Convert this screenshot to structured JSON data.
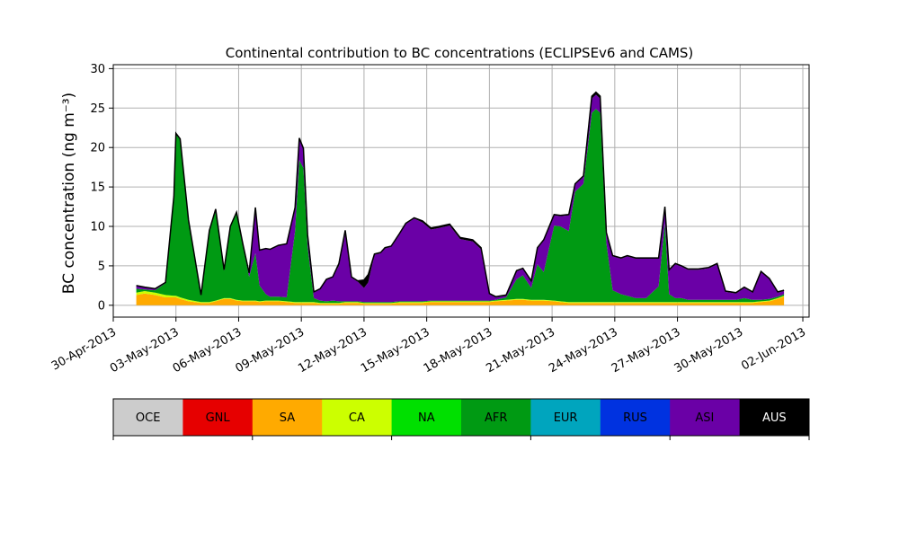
{
  "chart_data": {
    "type": "area",
    "title": "Continental contribution to BC concentrations (ECLIPSEv6 and CAMS)",
    "xlabel": "",
    "ylabel": "BC concentration (ng m⁻³)",
    "x_unit": "day",
    "xlim": [
      30,
      63.3
    ],
    "ylim": [
      -1.5,
      30.5
    ],
    "yticks": [
      0,
      5,
      10,
      15,
      20,
      25,
      30
    ],
    "xticks": [
      {
        "day": 30,
        "label": "30-Apr-2013"
      },
      {
        "day": 33,
        "label": "03-May-2013"
      },
      {
        "day": 36,
        "label": "06-May-2013"
      },
      {
        "day": 39,
        "label": "09-May-2013"
      },
      {
        "day": 42,
        "label": "12-May-2013"
      },
      {
        "day": 45,
        "label": "15-May-2013"
      },
      {
        "day": 48,
        "label": "18-May-2013"
      },
      {
        "day": 51,
        "label": "21-May-2013"
      },
      {
        "day": 54,
        "label": "24-May-2013"
      },
      {
        "day": 57,
        "label": "27-May-2013"
      },
      {
        "day": 60,
        "label": "30-May-2013"
      },
      {
        "day": 63,
        "label": "02-Jun-2013"
      }
    ],
    "grid": true,
    "legend_placement": "colorbar-below",
    "legend": [
      {
        "name": "OCE",
        "color": "#cccccc"
      },
      {
        "name": "GNL",
        "color": "#e60000"
      },
      {
        "name": "SA",
        "color": "#ffaa00"
      },
      {
        "name": "CA",
        "color": "#ccff00"
      },
      {
        "name": "NA",
        "color": "#00e000"
      },
      {
        "name": "AFR",
        "color": "#009a13"
      },
      {
        "name": "EUR",
        "color": "#00a5be"
      },
      {
        "name": "RUS",
        "color": "#0032e0"
      },
      {
        "name": "ASI",
        "color": "#6a00a6"
      },
      {
        "name": "AUS",
        "color": "#000000"
      }
    ],
    "x": [
      31.1,
      31.5,
      32,
      32.5,
      32.9,
      33,
      33.2,
      33.6,
      34.2,
      34.6,
      34.9,
      35.3,
      35.6,
      35.9,
      36.2,
      36.5,
      36.8,
      37.0,
      37.3,
      37.5,
      37.9,
      38.3,
      38.7,
      38.9,
      39.1,
      39.3,
      39.6,
      39.9,
      40.2,
      40.5,
      40.8,
      41.1,
      41.4,
      41.7,
      42.0,
      42.2,
      42.5,
      42.8,
      43.0,
      43.3,
      43.7,
      44.0,
      44.4,
      44.8,
      45.2,
      45.6,
      46.1,
      46.6,
      47.2,
      47.6,
      48.0,
      48.3,
      48.8,
      49.3,
      49.6,
      50.0,
      50.3,
      50.6,
      51.1,
      51.4,
      51.8,
      52.1,
      52.5,
      52.9,
      53.1,
      53.3,
      53.6,
      53.9,
      54.3,
      54.6,
      55.0,
      55.5,
      56.1,
      56.4,
      56.6,
      56.9,
      57.2,
      57.5,
      58.0,
      58.5,
      58.9,
      59.3,
      59.8,
      60.2,
      60.6,
      61.0,
      61.4,
      61.8,
      62.1
    ],
    "series": [
      {
        "name": "SA",
        "values": [
          1.3,
          1.5,
          1.3,
          1,
          1,
          1,
          0.8,
          0.5,
          0.3,
          0.3,
          0.5,
          0.8,
          0.8,
          0.6,
          0.5,
          0.5,
          0.5,
          0.4,
          0.5,
          0.5,
          0.5,
          0.4,
          0.3,
          0.3,
          0.3,
          0.3,
          0.3,
          0.2,
          0.2,
          0.2,
          0.2,
          0.3,
          0.3,
          0.3,
          0.2,
          0.2,
          0.2,
          0.2,
          0.2,
          0.2,
          0.3,
          0.3,
          0.3,
          0.3,
          0.4,
          0.4,
          0.4,
          0.4,
          0.4,
          0.4,
          0.4,
          0.5,
          0.6,
          0.7,
          0.7,
          0.6,
          0.6,
          0.6,
          0.5,
          0.4,
          0.3,
          0.3,
          0.3,
          0.3,
          0.3,
          0.3,
          0.3,
          0.3,
          0.3,
          0.3,
          0.3,
          0.3,
          0.3,
          0.3,
          0.3,
          0.3,
          0.3,
          0.3,
          0.3,
          0.3,
          0.3,
          0.3,
          0.3,
          0.3,
          0.3,
          0.4,
          0.5,
          0.8,
          1.1
        ]
      },
      {
        "name": "CA",
        "values": [
          0.3,
          0.3,
          0.3,
          0.3,
          0.2,
          0.2,
          0.2,
          0.2,
          0.1,
          0.1,
          0.1,
          0.1,
          0.1,
          0.1,
          0.1,
          0.1,
          0.1,
          0.1,
          0.1,
          0.1,
          0.1,
          0.1,
          0.1,
          0.1,
          0.1,
          0.1,
          0.1,
          0.1,
          0.1,
          0.1,
          0.1,
          0.1,
          0.1,
          0.1,
          0.1,
          0.1,
          0.1,
          0.1,
          0.1,
          0.1,
          0.1,
          0.1,
          0.1,
          0.1,
          0.1,
          0.1,
          0.1,
          0.1,
          0.1,
          0.1,
          0.1,
          0.1,
          0.1,
          0.1,
          0.1,
          0.1,
          0.1,
          0.1,
          0.1,
          0.1,
          0.1,
          0.1,
          0.1,
          0.1,
          0.1,
          0.1,
          0.1,
          0.1,
          0.1,
          0.1,
          0.1,
          0.1,
          0.1,
          0.1,
          0.1,
          0.1,
          0.1,
          0.1,
          0.1,
          0.1,
          0.1,
          0.1,
          0.1,
          0.1,
          0.1,
          0.1,
          0.1,
          0.1,
          0.1
        ]
      },
      {
        "name": "AFR",
        "values": [
          0.5,
          0.2,
          0.3,
          1.5,
          12.5,
          20.5,
          20,
          10,
          0.8,
          9,
          11.5,
          3.5,
          9,
          11,
          7,
          3,
          6,
          2,
          0.8,
          0.5,
          0.5,
          0.5,
          9,
          18,
          17,
          7,
          0.5,
          0.3,
          0.2,
          0.3,
          0.2,
          0.1,
          0.1,
          0.1,
          0.1,
          0.1,
          0.1,
          0.1,
          0.1,
          0.1,
          0.1,
          0.1,
          0.1,
          0.1,
          0.1,
          0.1,
          0.1,
          0.1,
          0.1,
          0.1,
          0.1,
          0.1,
          0.3,
          2.5,
          3,
          1.5,
          4.5,
          3.5,
          9.5,
          9.5,
          9,
          14,
          15,
          24,
          24.5,
          24,
          7.5,
          1.5,
          1,
          0.8,
          0.5,
          0.5,
          2,
          10,
          1,
          0.5,
          0.5,
          0.3,
          0.3,
          0.3,
          0.3,
          0.3,
          0.3,
          0.5,
          0.3,
          0.2,
          0.2,
          0.2,
          0.2
        ]
      },
      {
        "name": "ASI",
        "values": [
          0.4,
          0.3,
          0.2,
          0.1,
          0.1,
          0.1,
          0.1,
          0.1,
          0.1,
          0.1,
          0.1,
          0.1,
          0.1,
          0.1,
          0.2,
          0.5,
          5.8,
          4.5,
          5.8,
          6,
          6.5,
          6.8,
          3,
          2.8,
          2.5,
          1.5,
          0.8,
          1.5,
          2.8,
          3,
          4.5,
          8.5,
          3,
          2.5,
          1.8,
          2.5,
          6,
          6.2,
          6.8,
          7,
          8.5,
          9.8,
          10.5,
          10,
          9,
          9.2,
          9.5,
          7.8,
          7.5,
          6.5,
          0.8,
          0.3,
          0.2,
          1,
          0.8,
          0.8,
          2,
          4,
          1.3,
          1.3,
          2,
          0.9,
          0.9,
          1.8,
          1.8,
          1.8,
          1.2,
          4.3,
          4.5,
          5,
          5,
          5,
          3.5,
          2,
          3,
          4.3,
          4,
          3.8,
          3.8,
          4,
          4.5,
          1,
          0.8,
          1.3,
          0.9,
          3.5,
          2.5,
          0.5,
          0.4
        ]
      },
      {
        "name": "AUS",
        "values": [
          0,
          0,
          0,
          0,
          0,
          0,
          0,
          0,
          0,
          0,
          0,
          0,
          0,
          0,
          0,
          0,
          0,
          0,
          0,
          0,
          0,
          0,
          0,
          0,
          0,
          0,
          0,
          0,
          0,
          0,
          0.3,
          0.5,
          0.1,
          0.1,
          1.0,
          1.0,
          0.1,
          0.1,
          0.1,
          0.1,
          0.1,
          0.1,
          0.1,
          0.2,
          0.2,
          0.2,
          0.2,
          0.2,
          0.2,
          0.2,
          0.1,
          0.1,
          0.1,
          0.1,
          0.1,
          0.1,
          0.1,
          0.1,
          0.1,
          0.1,
          0.1,
          0.1,
          0.1,
          0.3,
          0.3,
          0.3,
          0.1,
          0.1,
          0.1,
          0.1,
          0.1,
          0.1,
          0.1,
          0.1,
          0.1,
          0.1,
          0.1,
          0.1,
          0.1,
          0.1,
          0.1,
          0.1,
          0.1,
          0.1,
          0.1,
          0.1,
          0.1,
          0.1,
          0.1
        ]
      }
    ]
  }
}
